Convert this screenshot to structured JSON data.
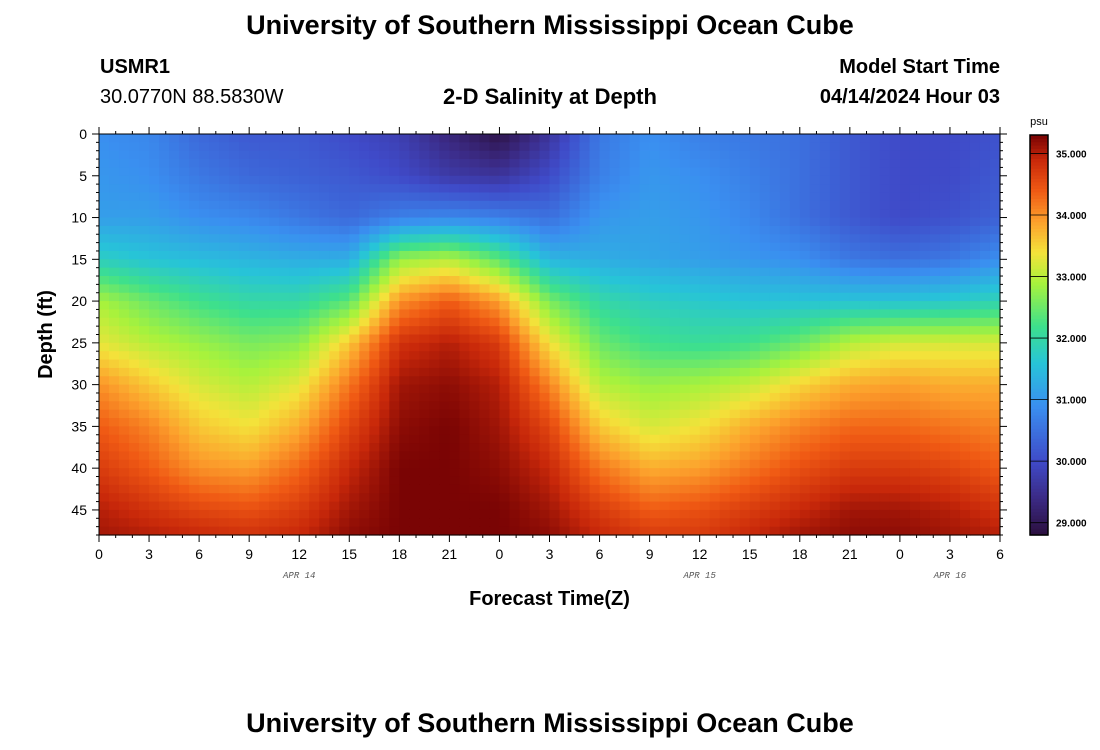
{
  "page": {
    "title": "University of Southern Mississippi Ocean Cube",
    "footer_title": "University of Southern Mississippi Ocean Cube",
    "station_id": "USMR1",
    "location": "30.0770N  88.5830W",
    "plot_label": "2-D Salinity at Depth",
    "model_start_label": "Model Start Time",
    "model_start_value": "04/14/2024 Hour 03"
  },
  "chart_data": {
    "type": "heatmap",
    "title": "2-D Salinity at Depth",
    "xlabel": "Forecast Time(Z)",
    "ylabel": "Depth (ft)",
    "x_hours_range": [
      0,
      54
    ],
    "x_tick_hours": [
      0,
      3,
      6,
      9,
      12,
      15,
      18,
      21,
      24,
      27,
      30,
      33,
      36,
      39,
      42,
      45,
      48,
      51,
      54
    ],
    "x_tick_labels": [
      "0",
      "3",
      "6",
      "9",
      "12",
      "15",
      "18",
      "21",
      "0",
      "3",
      "6",
      "9",
      "12",
      "15",
      "18",
      "21",
      "0",
      "3",
      "6"
    ],
    "date_labels": [
      {
        "hour": 12,
        "label": "APR 14"
      },
      {
        "hour": 36,
        "label": "APR 15"
      },
      {
        "hour": 51,
        "label": "APR 16"
      }
    ],
    "y_range": [
      0,
      48
    ],
    "y_ticks": [
      0,
      5,
      10,
      15,
      20,
      25,
      30,
      35,
      40,
      45
    ],
    "colorbar": {
      "unit": "psu",
      "min": 28.8,
      "max": 35.3,
      "ticks": [
        29.0,
        30.0,
        31.0,
        32.0,
        33.0,
        34.0,
        35.0
      ],
      "tick_labels": [
        "29.000",
        "30.000",
        "31.000",
        "32.000",
        "33.000",
        "34.000",
        "35.000"
      ],
      "colors": [
        "#2b0f3d",
        "#3b2a84",
        "#3f4ac8",
        "#3a8ff0",
        "#27c4d8",
        "#3ee08c",
        "#a8f23c",
        "#f4e23a",
        "#fca02c",
        "#f05a14",
        "#c8280a",
        "#7a0404"
      ],
      "color_stops": [
        28.8,
        29.4,
        30.0,
        30.9,
        31.6,
        32.2,
        32.9,
        33.4,
        33.9,
        34.4,
        34.9,
        35.3
      ]
    },
    "field": {
      "hours": [
        0,
        3,
        6,
        9,
        12,
        15,
        18,
        21,
        24,
        27,
        30,
        33,
        36,
        39,
        42,
        45,
        48,
        51,
        54
      ],
      "depths": [
        0,
        5,
        10,
        15,
        20,
        25,
        30,
        35,
        40,
        45,
        48
      ],
      "salinity": [
        [
          30.9,
          30.8,
          30.4,
          30.2,
          30.2,
          30.0,
          29.8,
          29.3,
          28.9,
          29.6,
          30.6,
          30.9,
          30.7,
          30.6,
          30.5,
          30.2,
          30.0,
          30.0,
          30.1
        ],
        [
          31.0,
          30.9,
          30.6,
          30.4,
          30.3,
          30.2,
          30.0,
          29.7,
          29.6,
          30.0,
          30.7,
          31.0,
          30.9,
          30.7,
          30.5,
          30.2,
          30.0,
          30.0,
          30.2
        ],
        [
          31.1,
          31.1,
          30.9,
          30.8,
          30.6,
          30.4,
          30.7,
          30.8,
          30.7,
          30.5,
          31.0,
          31.1,
          31.0,
          30.8,
          30.5,
          30.2,
          30.0,
          30.1,
          30.3
        ],
        [
          31.8,
          31.6,
          31.5,
          31.4,
          31.3,
          31.3,
          32.8,
          33.0,
          32.4,
          31.4,
          31.3,
          31.2,
          31.1,
          31.0,
          30.9,
          30.6,
          30.5,
          30.6,
          30.9
        ],
        [
          32.9,
          32.5,
          32.2,
          32.0,
          32.0,
          32.4,
          34.0,
          34.4,
          33.9,
          32.6,
          32.0,
          31.8,
          31.7,
          31.6,
          31.6,
          31.6,
          31.6,
          31.7,
          31.9
        ],
        [
          33.3,
          33.0,
          32.8,
          32.6,
          32.7,
          33.6,
          34.8,
          35.0,
          34.7,
          33.4,
          32.5,
          32.2,
          32.1,
          32.2,
          32.5,
          33.0,
          33.2,
          33.2,
          33.2
        ],
        [
          34.0,
          33.6,
          33.2,
          33.0,
          33.3,
          34.2,
          35.1,
          35.2,
          35.0,
          34.1,
          33.0,
          32.8,
          32.9,
          33.1,
          33.5,
          33.8,
          33.9,
          33.8,
          33.8
        ],
        [
          34.4,
          34.1,
          33.6,
          33.4,
          33.8,
          34.6,
          35.2,
          35.3,
          35.1,
          34.6,
          33.6,
          33.2,
          33.4,
          33.8,
          34.1,
          34.3,
          34.3,
          34.2,
          34.1
        ],
        [
          34.7,
          34.4,
          34.0,
          33.9,
          34.3,
          34.9,
          35.3,
          35.3,
          35.2,
          34.9,
          34.2,
          33.8,
          33.9,
          34.2,
          34.5,
          34.7,
          34.7,
          34.6,
          34.4
        ],
        [
          35.0,
          34.8,
          34.6,
          34.5,
          34.7,
          35.1,
          35.3,
          35.3,
          35.3,
          35.1,
          34.7,
          34.4,
          34.5,
          34.7,
          34.9,
          35.1,
          35.1,
          35.0,
          34.8
        ],
        [
          35.1,
          35.0,
          34.9,
          34.8,
          34.9,
          35.2,
          35.3,
          35.3,
          35.3,
          35.2,
          34.9,
          34.7,
          34.7,
          34.9,
          35.1,
          35.2,
          35.2,
          35.1,
          35.0
        ]
      ]
    }
  }
}
